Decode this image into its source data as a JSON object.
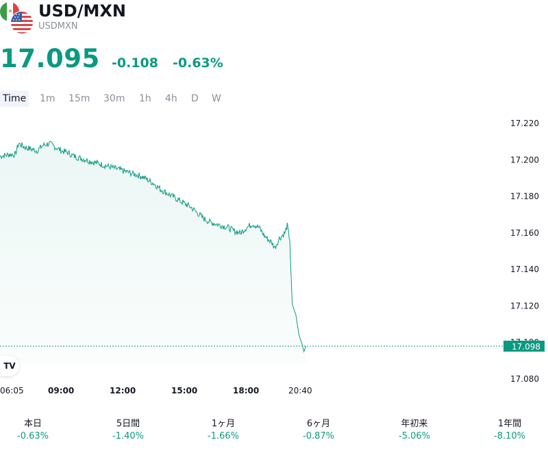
{
  "header": {
    "title": "USD/MXN",
    "subtitle": "USDMXN"
  },
  "quote": {
    "price": "17.095",
    "change": "-0.108",
    "change_pct": "-0.63%"
  },
  "intervals": {
    "active": "Time",
    "items": [
      "Time",
      "1m",
      "15m",
      "30m",
      "1h",
      "4h",
      "D",
      "W"
    ]
  },
  "chart_data": {
    "type": "area",
    "line_color": "#0a9981",
    "y_ticks": [
      "17.220",
      "17.200",
      "17.180",
      "17.160",
      "17.140",
      "17.120",
      "17.100",
      "17.080"
    ],
    "y_range": [
      17.08,
      17.22
    ],
    "x_ticks": [
      {
        "label": "06:05",
        "bold": false
      },
      {
        "label": "09:00",
        "bold": true
      },
      {
        "label": "12:00",
        "bold": true
      },
      {
        "label": "15:00",
        "bold": true
      },
      {
        "label": "18:00",
        "bold": true
      },
      {
        "label": "20:40",
        "bold": false
      }
    ],
    "last_price_label": "17.098",
    "series": [
      {
        "values": [
          [
            0,
            17.202
          ],
          [
            1.5,
            17.203
          ],
          [
            2.5,
            17.203
          ],
          [
            3.0,
            17.209
          ],
          [
            4.0,
            17.207
          ],
          [
            5.0,
            17.206
          ],
          [
            6.0,
            17.205
          ],
          [
            7.0,
            17.208
          ],
          [
            8.0,
            17.209
          ],
          [
            9.0,
            17.207
          ],
          [
            10,
            17.205
          ],
          [
            11,
            17.204
          ],
          [
            12,
            17.202
          ],
          [
            13,
            17.201
          ],
          [
            14,
            17.2
          ],
          [
            15,
            17.199
          ],
          [
            16,
            17.198
          ],
          [
            17,
            17.197
          ],
          [
            18,
            17.196
          ],
          [
            19,
            17.195
          ],
          [
            20,
            17.194
          ],
          [
            21,
            17.193
          ],
          [
            22,
            17.192
          ],
          [
            23,
            17.191
          ],
          [
            24,
            17.189
          ],
          [
            25,
            17.187
          ],
          [
            26,
            17.184
          ],
          [
            27,
            17.182
          ],
          [
            28,
            17.18
          ],
          [
            29,
            17.178
          ],
          [
            30,
            17.176
          ],
          [
            31,
            17.174
          ],
          [
            32,
            17.171
          ],
          [
            33,
            17.168
          ],
          [
            34,
            17.166
          ],
          [
            35,
            17.165
          ],
          [
            36,
            17.164
          ],
          [
            37,
            17.163
          ],
          [
            38,
            17.161
          ],
          [
            39,
            17.16
          ],
          [
            40,
            17.163
          ],
          [
            41,
            17.165
          ],
          [
            42,
            17.163
          ],
          [
            43,
            17.158
          ],
          [
            44,
            17.155
          ],
          [
            44.6,
            17.152
          ],
          [
            45.3,
            17.157
          ],
          [
            46.2,
            17.16
          ],
          [
            46.6,
            17.164
          ],
          [
            47.0,
            17.156
          ],
          [
            47.4,
            17.121
          ],
          [
            48.0,
            17.115
          ],
          [
            48.5,
            17.104
          ],
          [
            49.0,
            17.099
          ],
          [
            49.3,
            17.095
          ],
          [
            49.6,
            17.098
          ]
        ]
      }
    ]
  },
  "stats": [
    {
      "label": "本日",
      "value": "-0.63%"
    },
    {
      "label": "5日間",
      "value": "-1.40%"
    },
    {
      "label": "1ヶ月",
      "value": "-1.66%"
    },
    {
      "label": "6ヶ月",
      "value": "-0.87%"
    },
    {
      "label": "年初来",
      "value": "-5.06%"
    },
    {
      "label": "1年間",
      "value": "-8.10%"
    }
  ],
  "logo_text": "TV"
}
